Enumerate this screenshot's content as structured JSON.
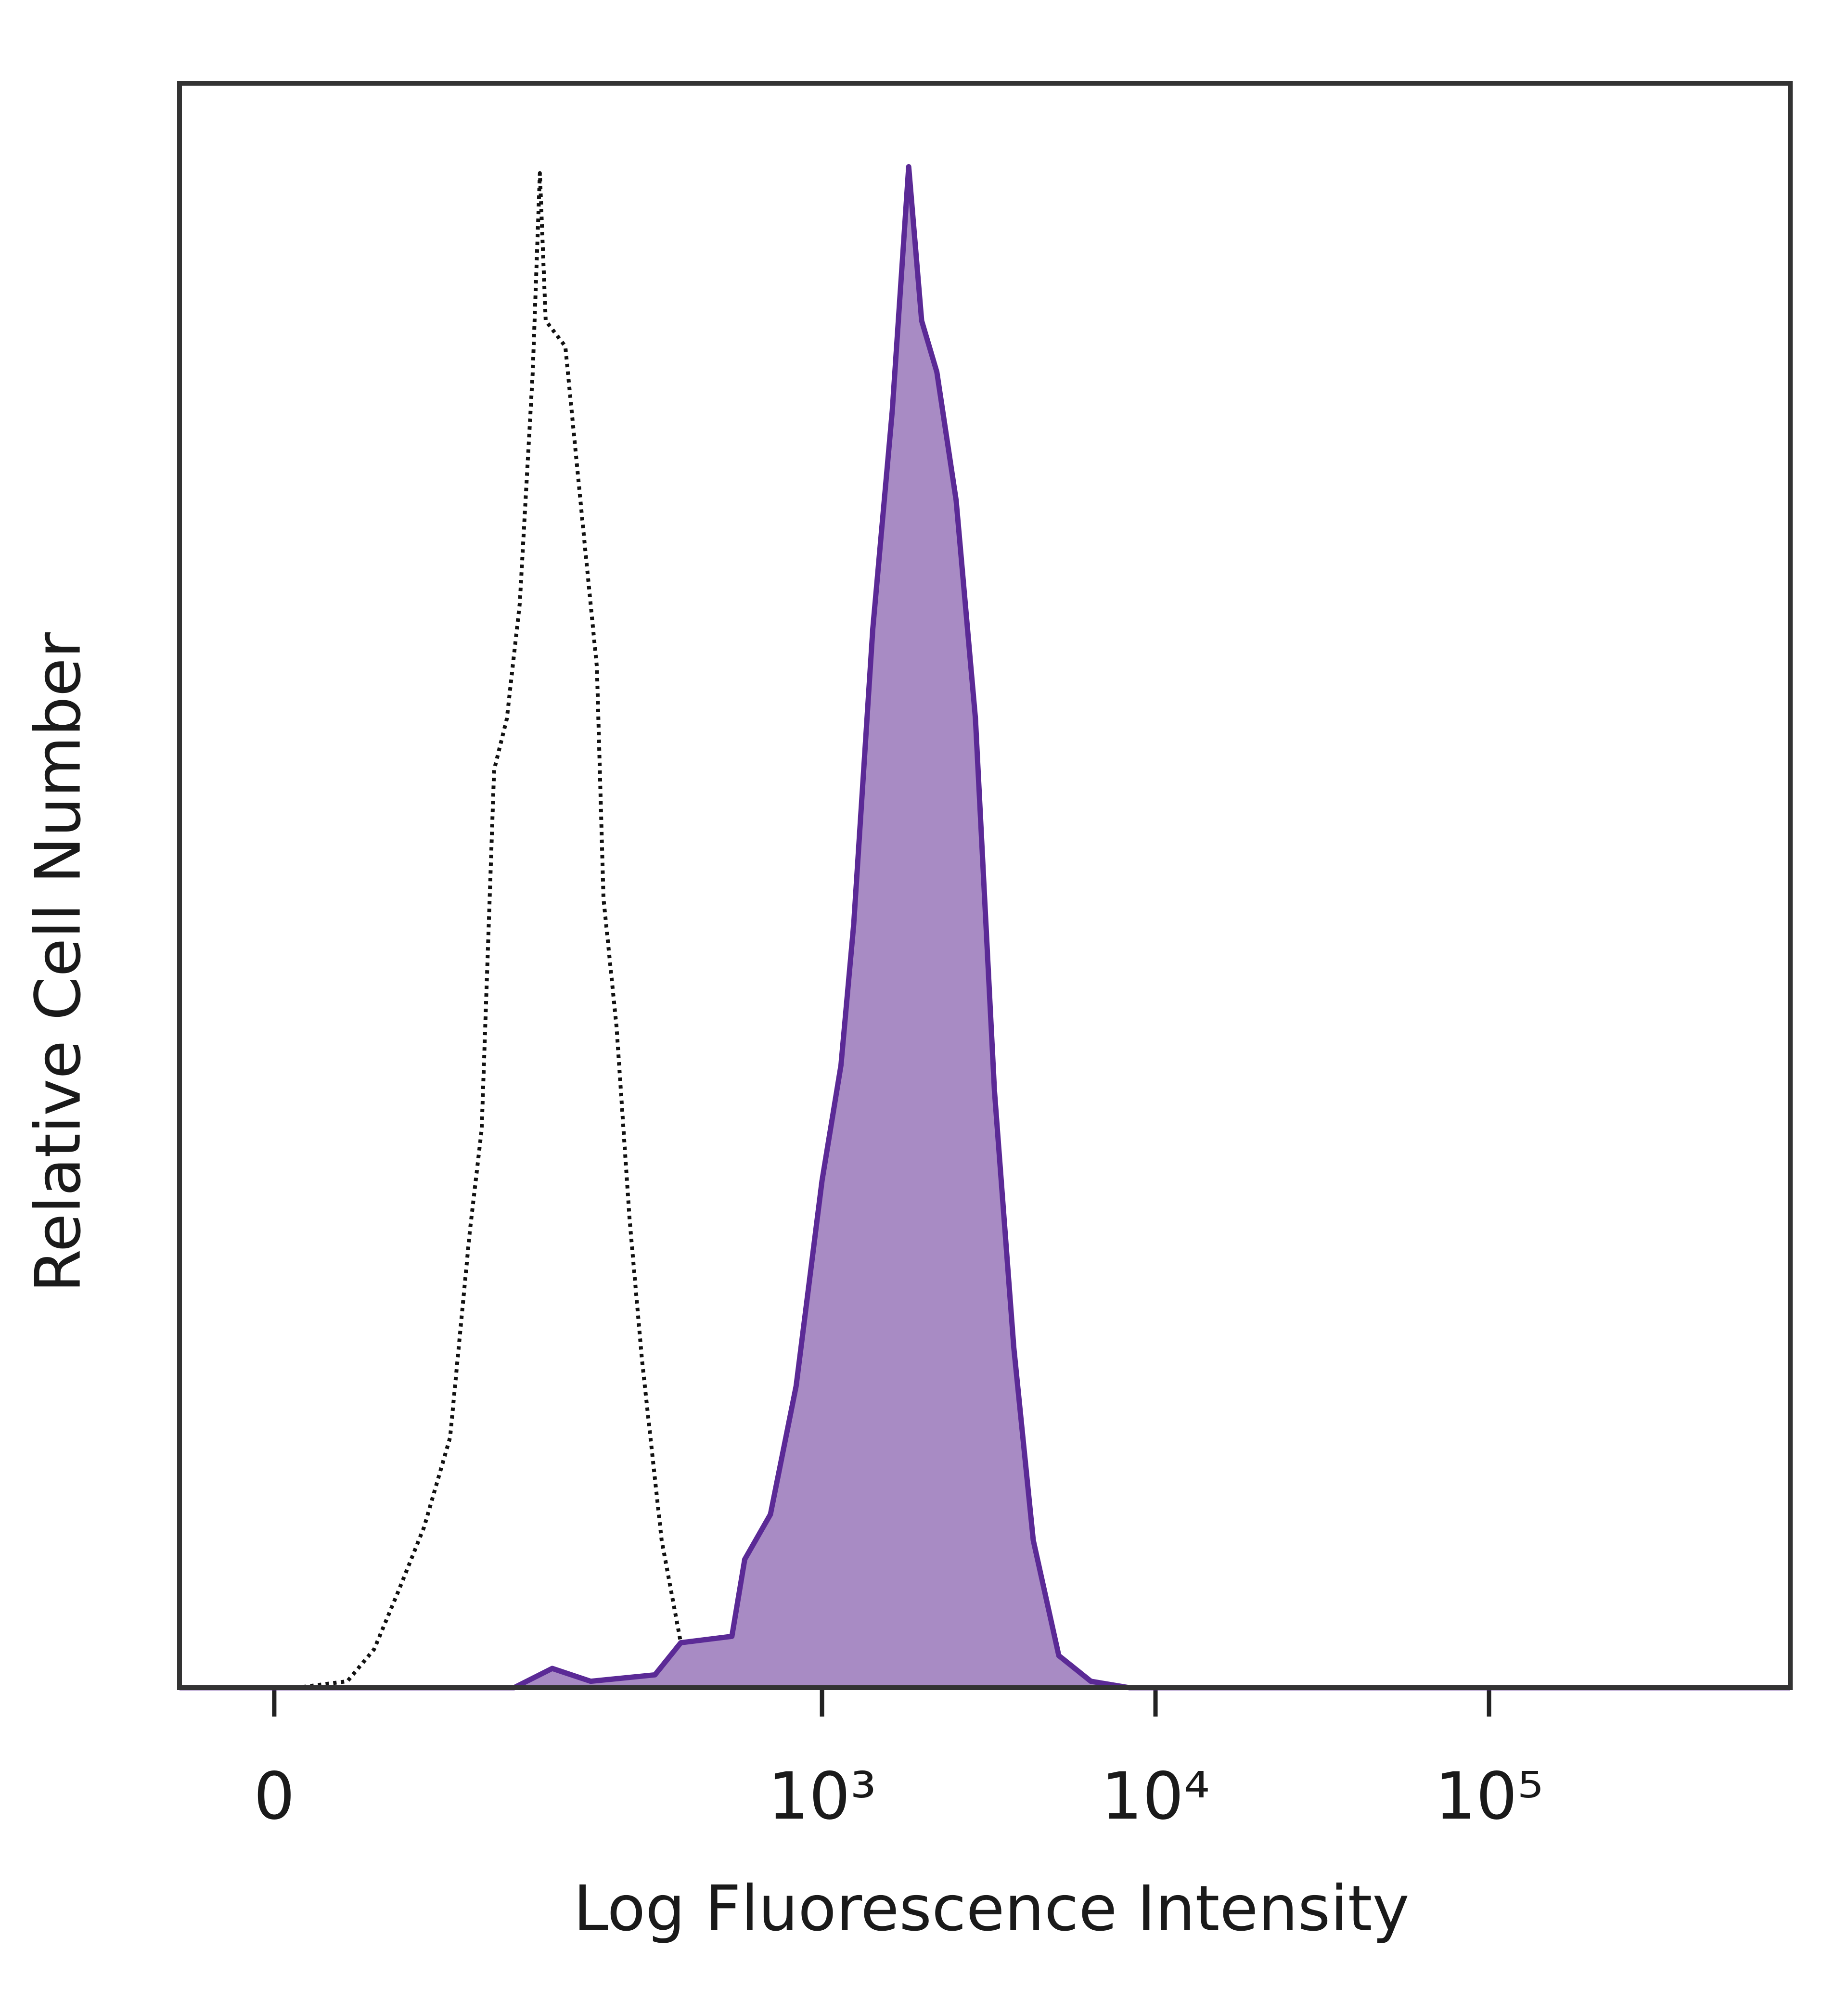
{
  "chart_data": {
    "type": "histogram",
    "xlabel": "Log Fluorescence Intensity",
    "ylabel": "Relative Cell Number",
    "xscale": "asinh",
    "xlim": [
      -32,
      800000
    ],
    "xticks": [
      0,
      {
        "value": 1000,
        "label": "10³"
      },
      {
        "value": 10000,
        "label": "10⁴"
      },
      {
        "value": 100000,
        "label": "10⁵"
      }
    ],
    "ylim": [
      0,
      100
    ],
    "series": [
      {
        "color": "#111111",
        "style": "dotted",
        "fill": false,
        "x": [
          -32,
          7,
          24,
          34,
          44,
          56,
          70,
          82,
          90,
          99,
          109,
          120,
          132,
          139,
          145,
          167,
          191,
          209,
          219,
          240,
          263,
          287,
          329,
          376,
          449,
          586,
          800000
        ],
        "values": [
          0,
          0,
          0.4,
          2.4,
          6,
          10,
          15.6,
          28.4,
          34.8,
          57.2,
          60.4,
          67.6,
          82,
          94.4,
          85.2,
          83.6,
          71.6,
          63.6,
          49.2,
          41.2,
          29.2,
          20.4,
          9.2,
          2.8,
          0.8,
          0,
          0
        ]
      },
      {
        "color": "#5b2a96",
        "fill_color": "#a88bc4",
        "style": "solid",
        "fill": true,
        "x": [
          -32,
          115,
          152,
          200,
          314,
          376,
          536,
          586,
          700,
          836,
          1000,
          1140,
          1245,
          1420,
          1625,
          1820,
          1990,
          2210,
          2525,
          2885,
          3290,
          3760,
          4300,
          5130,
          6400,
          8350,
          800000
        ],
        "values": [
          0,
          0,
          1.2,
          0.4,
          0.8,
          2.8,
          3.2,
          8,
          10.8,
          18.8,
          31.6,
          38.8,
          47.6,
          66,
          79.6,
          94.8,
          85.2,
          82,
          74,
          60.4,
          37.2,
          21.2,
          9.2,
          2,
          0.4,
          0,
          0
        ]
      }
    ]
  }
}
